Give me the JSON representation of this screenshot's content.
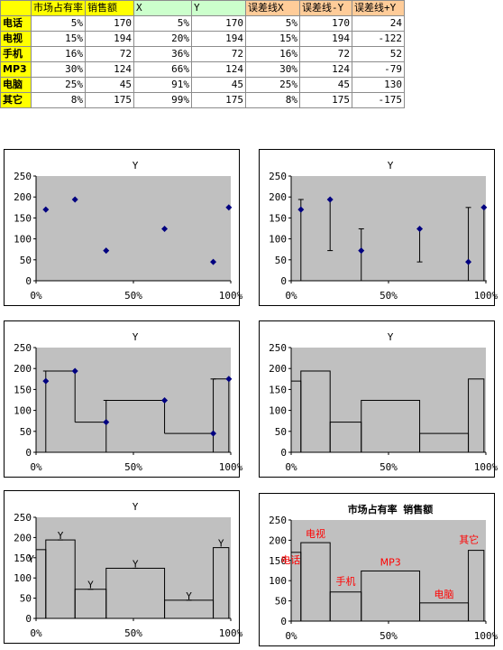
{
  "table": {
    "headers": [
      "",
      "市场占有率",
      "销售额",
      "X",
      "Y",
      "误差线X",
      "误差线-Y",
      "误差线+Y"
    ],
    "rows": [
      {
        "label": "电话",
        "cells": [
          "5%",
          "170",
          "5%",
          "170",
          "5%",
          "170",
          "24"
        ]
      },
      {
        "label": "电视",
        "cells": [
          "15%",
          "194",
          "20%",
          "194",
          "15%",
          "194",
          "-122"
        ]
      },
      {
        "label": "手机",
        "cells": [
          "16%",
          "72",
          "36%",
          "72",
          "16%",
          "72",
          "52"
        ]
      },
      {
        "label": "MP3",
        "cells": [
          "30%",
          "124",
          "66%",
          "124",
          "30%",
          "124",
          "-79"
        ]
      },
      {
        "label": "电脑",
        "cells": [
          "25%",
          "45",
          "91%",
          "45",
          "25%",
          "45",
          "130"
        ]
      },
      {
        "label": "其它",
        "cells": [
          "8%",
          "175",
          "99%",
          "175",
          "8%",
          "175",
          "-175"
        ]
      }
    ]
  },
  "chart_data": [
    {
      "type": "scatter",
      "variant": "points",
      "title": "Y",
      "x": [
        5,
        20,
        36,
        66,
        91,
        99
      ],
      "y": [
        170,
        194,
        72,
        124,
        45,
        175
      ],
      "xlim": [
        0,
        100
      ],
      "ylim": [
        0,
        250
      ],
      "xticks": [
        "0%",
        "50%",
        "100%"
      ],
      "yticks": [
        "0",
        "50",
        "100",
        "150",
        "200",
        "250"
      ],
      "marker_color": "#000080",
      "plot_bg": "#c0c0c0",
      "grid": false
    },
    {
      "type": "scatter",
      "variant": "points-with-y-error-bars",
      "title": "Y",
      "x": [
        5,
        20,
        36,
        66,
        91,
        99
      ],
      "y": [
        170,
        194,
        72,
        124,
        45,
        175
      ],
      "xlim": [
        0,
        100
      ],
      "ylim": [
        0,
        250
      ],
      "xticks": [
        "0%",
        "50%",
        "100%"
      ],
      "yticks": [
        "0",
        "50",
        "100",
        "150",
        "200",
        "250"
      ],
      "marker_color": "#000080",
      "plot_bg": "#c0c0c0",
      "grid": false
    },
    {
      "type": "scatter",
      "variant": "points-with-xy-error-bars",
      "title": "Y",
      "x": [
        5,
        20,
        36,
        66,
        91,
        99
      ],
      "y": [
        170,
        194,
        72,
        124,
        45,
        175
      ],
      "xlim": [
        0,
        100
      ],
      "ylim": [
        0,
        250
      ],
      "xticks": [
        "0%",
        "50%",
        "100%"
      ],
      "yticks": [
        "0",
        "50",
        "100",
        "150",
        "200",
        "250"
      ],
      "marker_color": "#000080",
      "plot_bg": "#c0c0c0",
      "grid": false
    },
    {
      "type": "bar",
      "variant": "variable-width-columns",
      "title": "Y",
      "widths": [
        5,
        15,
        16,
        30,
        25,
        8
      ],
      "values": [
        170,
        194,
        72,
        124,
        45,
        175
      ],
      "xlim": [
        0,
        100
      ],
      "ylim": [
        0,
        250
      ],
      "xticks": [
        "0%",
        "50%",
        "100%"
      ],
      "yticks": [
        "0",
        "50",
        "100",
        "150",
        "200",
        "250"
      ],
      "plot_bg": "#c0c0c0",
      "grid": false
    },
    {
      "type": "bar",
      "variant": "variable-width-columns-with-labels",
      "title": "Y",
      "widths": [
        5,
        15,
        16,
        30,
        25,
        8
      ],
      "values": [
        170,
        194,
        72,
        124,
        45,
        175
      ],
      "point_labels": [
        "Y",
        "Y",
        "Y",
        "Y",
        "Y",
        "Y"
      ],
      "xlim": [
        0,
        100
      ],
      "ylim": [
        0,
        250
      ],
      "xticks": [
        "0%",
        "50%",
        "100%"
      ],
      "yticks": [
        "0",
        "50",
        "100",
        "150",
        "200",
        "250"
      ],
      "plot_bg": "#c0c0c0",
      "grid": false
    },
    {
      "type": "bar",
      "variant": "variable-width-columns-with-category-labels",
      "title": "市场占有率 销售额",
      "title_color": "#0000cc",
      "label_color": "#ff0000",
      "widths": [
        5,
        15,
        16,
        30,
        25,
        8
      ],
      "values": [
        170,
        194,
        72,
        124,
        45,
        175
      ],
      "categories": [
        "电话",
        "电视",
        "手机",
        "MP3",
        "电脑",
        "其它"
      ],
      "xlim": [
        0,
        100
      ],
      "ylim": [
        0,
        250
      ],
      "xticks": [
        "0%",
        "50%",
        "100%"
      ],
      "yticks": [
        "0",
        "50",
        "100",
        "150",
        "200",
        "250"
      ],
      "plot_bg": "#c0c0c0",
      "grid": false
    }
  ]
}
